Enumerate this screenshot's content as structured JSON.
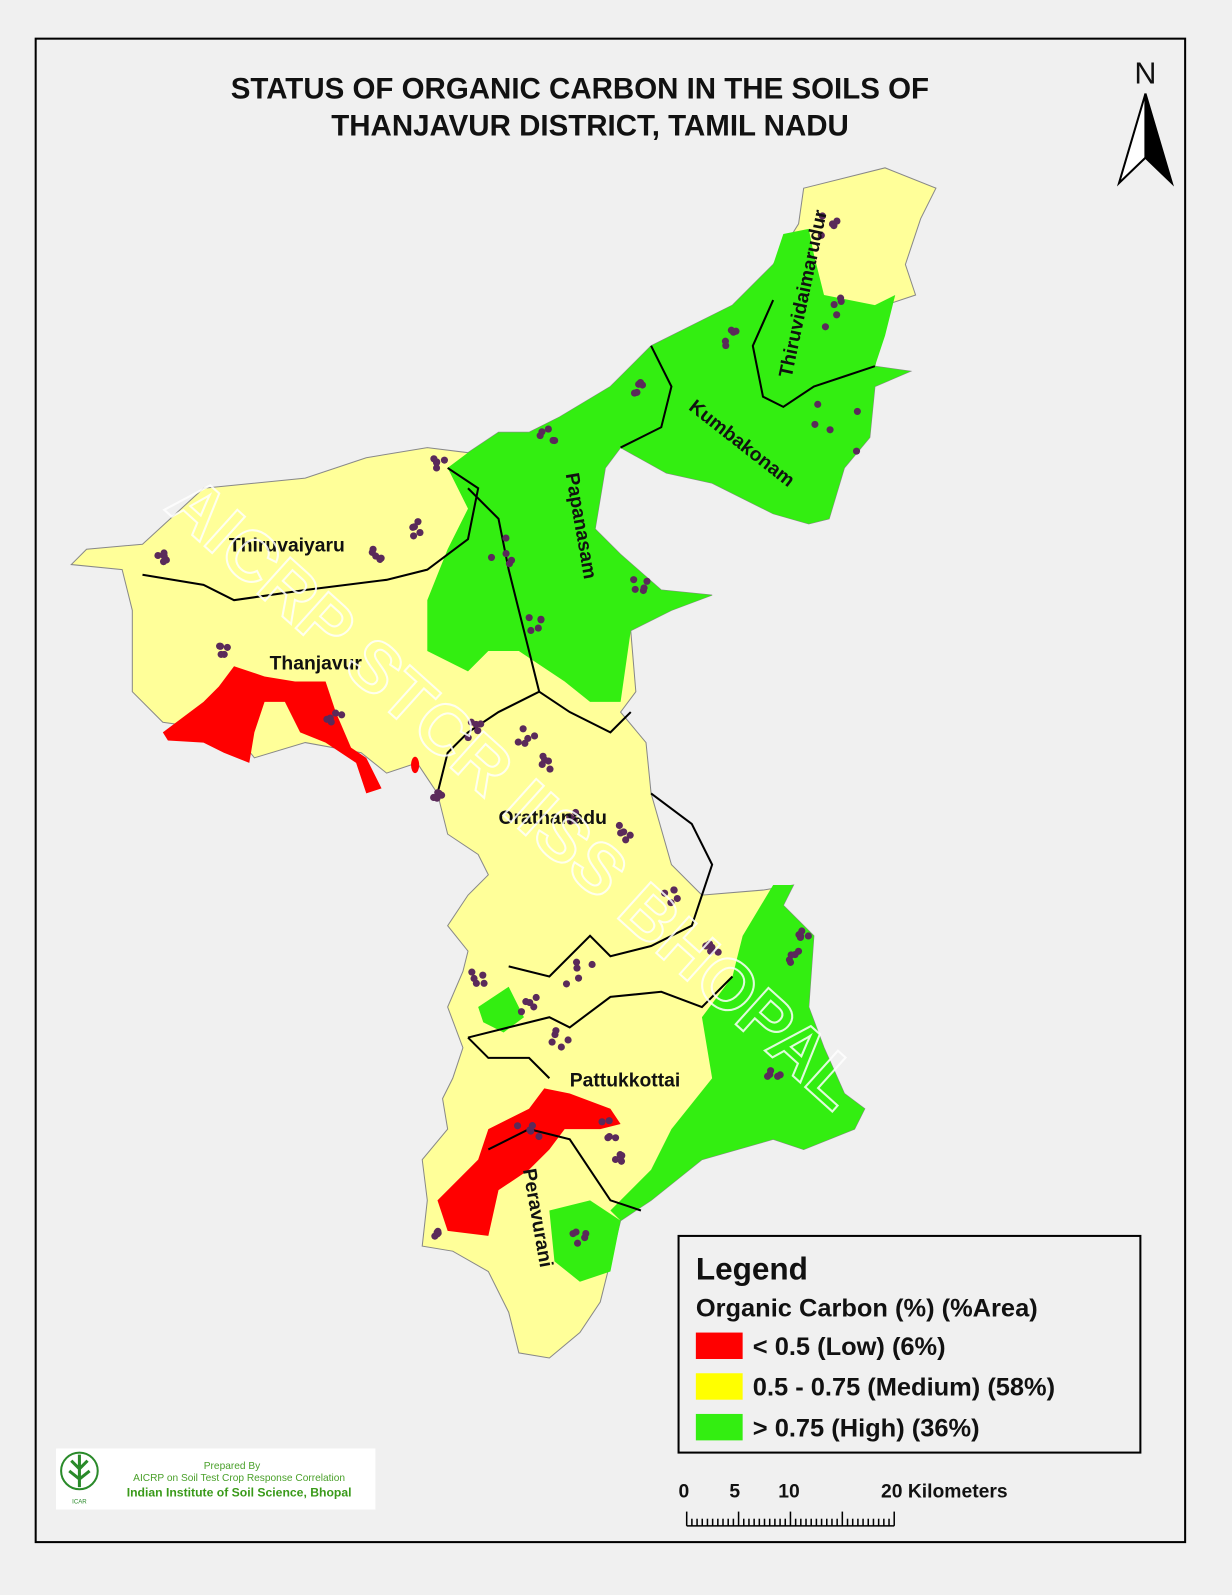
{
  "title": {
    "line1": "STATUS OF  ORGANIC CARBON   IN THE SOILS OF",
    "line2": "THANJAVUR   DISTRICT,   TAMIL NADU"
  },
  "north_arrow": {
    "label": "N"
  },
  "blocks": [
    "Thiruvidaimarudur",
    "Kumbakonam",
    "Papanasam",
    "Thiruvaiyaru",
    "Thanjavur",
    "Orathanadu",
    "Pattukkottai",
    "Peravurani"
  ],
  "watermark": "AICRP STCR IISS BHOPAL",
  "legend": {
    "title": "Legend",
    "subtitle": "Organic Carbon (%) (%Area)",
    "items": [
      {
        "label": "< 0.5 (Low)  (6%)",
        "color": "#ff0000"
      },
      {
        "label": "0.5 - 0.75 (Medium) (58%)",
        "color": "#ffff99"
      },
      {
        "label": "> 0.75 (High) (36%)",
        "color": "#33ee11"
      }
    ]
  },
  "scale_bar": {
    "ticks": [
      "0",
      "5",
      "10",
      "20 Kilometers"
    ]
  },
  "credit": {
    "line1": "Prepared By",
    "line2": "AICRP on Soil Test Crop Response Correlation",
    "line3": "Indian Institute of Soil Science, Bhopal",
    "logo_text": "ICAR"
  },
  "colors": {
    "low": "#ff0000",
    "medium": "#ffff99",
    "high": "#33ee11",
    "sample_point": "#5a2a5a",
    "boundary": "#000000"
  }
}
